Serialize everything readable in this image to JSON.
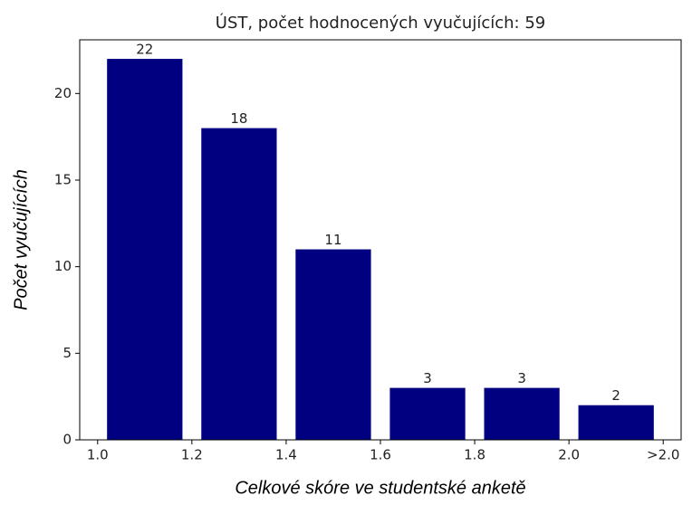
{
  "chart_data": {
    "type": "histogram",
    "title": "ÚST, počet hodnocených vyučujících: 59",
    "x_label": "Celkové skóre ve studentské anketě",
    "y_label": "Počet vyučujících",
    "bins": [
      1.0,
      1.2,
      1.4,
      1.6,
      1.8,
      2.0,
      2.2
    ],
    "values": [
      22,
      18,
      11,
      3,
      3,
      2
    ],
    "color": "#000080",
    "xlim": [
      0.962,
      2.238
    ],
    "xticks": [
      {
        "value": 1.0,
        "label": "1.0"
      },
      {
        "value": 1.2,
        "label": "1.2"
      },
      {
        "value": 1.4,
        "label": "1.4"
      },
      {
        "value": 1.6,
        "label": "1.6"
      },
      {
        "value": 1.8,
        "label": "1.8"
      },
      {
        "value": 2.0,
        "label": "2.0"
      },
      {
        "value": 2.2,
        "label": ">2.0"
      }
    ],
    "ylim": [
      0,
      23.1
    ],
    "yticks": [
      0,
      5,
      10,
      15,
      20
    ],
    "grid": false
  }
}
